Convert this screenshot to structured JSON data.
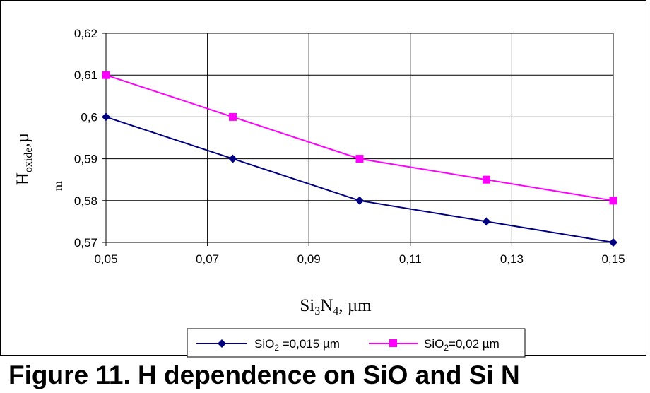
{
  "chart_data": {
    "type": "line",
    "x": [
      0.05,
      0.075,
      0.1,
      0.125,
      0.15
    ],
    "xlim": [
      0.05,
      0.15
    ],
    "ylim": [
      0.57,
      0.62
    ],
    "x_ticks": [
      "0,05",
      "0,07",
      "0,09",
      "0,11",
      "0,13",
      "0,15"
    ],
    "y_ticks": [
      "0,57",
      "0,58",
      "0,59",
      "0,6",
      "0,61",
      "0,62"
    ],
    "grid": true,
    "legend_position": "bottom",
    "xlabel": {
      "prefix": "Si",
      "sub1": "3",
      "mid": "N",
      "sub2": "4",
      "suffix": ", µm"
    },
    "ylabel": {
      "main": "H",
      "sub": "oxide",
      "suffix": ",µ",
      "cut": "m"
    },
    "series": [
      {
        "name": {
          "main": "SiO",
          "sub": "2",
          "suffix": " =0,015  µm"
        },
        "values": [
          0.6,
          0.59,
          0.58,
          0.575,
          0.57
        ],
        "color": "#000080",
        "marker": "diamond"
      },
      {
        "name": {
          "main": "SiO",
          "sub": "2",
          "suffix": "=0,02 µm"
        },
        "values": [
          0.61,
          0.6,
          0.59,
          0.585,
          0.58
        ],
        "color": "#FF00FF",
        "marker": "square"
      }
    ]
  },
  "caption": "Figure 11. H     dependence on SiO  and Si N"
}
